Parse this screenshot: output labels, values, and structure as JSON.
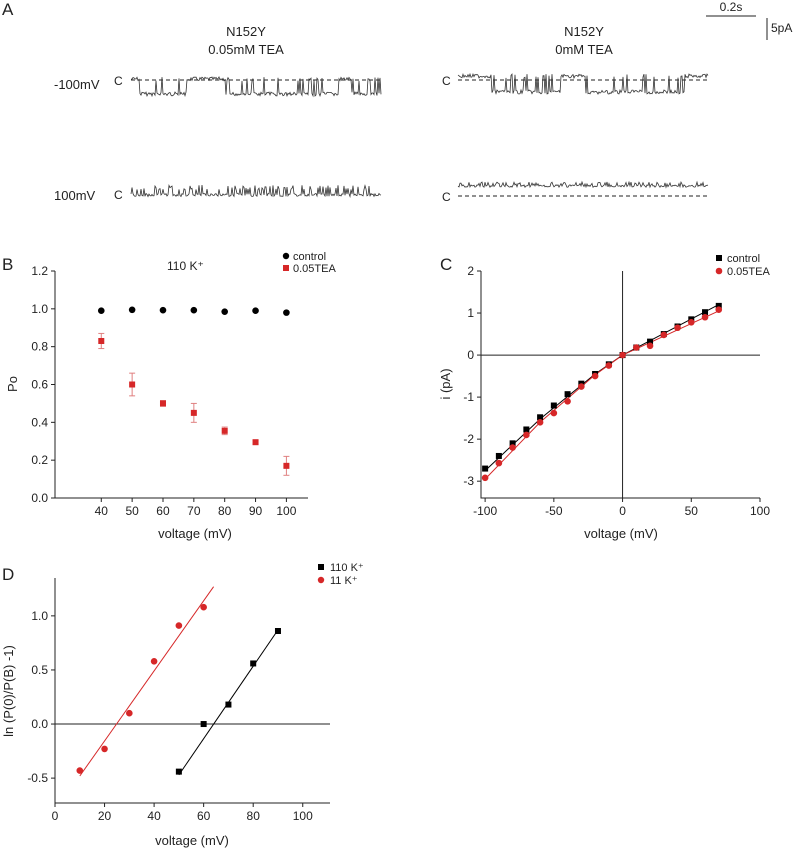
{
  "panel_letters": [
    "A",
    "B",
    "C",
    "D"
  ],
  "panel_a": {
    "scale_bar_time": "0.2s",
    "scale_bar_current": "5pA",
    "closed_label": "C",
    "left_title_line1": "N152Y",
    "left_title_line2": "0.05mM  TEA",
    "right_title_line1": "N152Y",
    "right_title_line2": "0mM  TEA",
    "row_labels": [
      "-100mV",
      "100mV"
    ]
  },
  "chart_data": [
    {
      "id": "B",
      "type": "scatter",
      "annotation": "110 K⁺",
      "xlabel": "voltage (mV)",
      "ylabel": "Po",
      "xlim": [
        25,
        107
      ],
      "ylim": [
        0,
        1.2
      ],
      "xticks": [
        40,
        50,
        60,
        70,
        80,
        90,
        100
      ],
      "yticks": [
        0.0,
        0.2,
        0.4,
        0.6,
        0.8,
        1.0,
        1.2
      ],
      "legend_position": "top-right",
      "series": [
        {
          "name": "control",
          "color": "#000000",
          "marker": "circle",
          "x": [
            40,
            50,
            60,
            70,
            80,
            90,
            100
          ],
          "y": [
            0.99,
            0.995,
            0.993,
            0.993,
            0.985,
            0.99,
            0.98
          ]
        },
        {
          "name": "0.05TEA",
          "color": "#d62728",
          "marker": "square",
          "x": [
            40,
            50,
            60,
            70,
            80,
            90,
            100
          ],
          "y": [
            0.83,
            0.6,
            0.5,
            0.45,
            0.355,
            0.295,
            0.17
          ],
          "err": [
            0.04,
            0.06,
            0.015,
            0.05,
            0.02,
            0.01,
            0.05
          ]
        }
      ]
    },
    {
      "id": "C",
      "type": "scatter",
      "xlabel": "voltage (mV)",
      "ylabel": "i (pA)",
      "xlim": [
        -103,
        100
      ],
      "ylim": [
        -3.4,
        2.0
      ],
      "xticks": [
        -100,
        -50,
        0,
        50,
        100
      ],
      "yticks": [
        -3,
        -2,
        -1,
        0,
        1,
        2
      ],
      "legend_position": "top-right",
      "series": [
        {
          "name": "control",
          "color": "#000000",
          "marker": "square",
          "x": [
            -100,
            -90,
            -80,
            -70,
            -60,
            -50,
            -40,
            -30,
            -20,
            -10,
            0,
            10,
            20,
            30,
            40,
            50,
            60,
            70
          ],
          "y": [
            -2.7,
            -2.4,
            -2.1,
            -1.77,
            -1.48,
            -1.2,
            -0.93,
            -0.68,
            -0.45,
            -0.22,
            0.0,
            0.18,
            0.32,
            0.5,
            0.68,
            0.85,
            1.02,
            1.17
          ],
          "fit": [
            [
              -100,
              -2.75
            ],
            [
              -60,
              -1.52
            ],
            [
              -20,
              -0.45
            ],
            [
              0,
              0.0
            ],
            [
              70,
              1.2
            ]
          ]
        },
        {
          "name": "0.05TEA",
          "color": "#d62728",
          "marker": "circle",
          "x": [
            -100,
            -90,
            -80,
            -70,
            -60,
            -50,
            -40,
            -30,
            -20,
            -10,
            0,
            10,
            20,
            30,
            40,
            50,
            60,
            70
          ],
          "y": [
            -2.92,
            -2.57,
            -2.2,
            -1.9,
            -1.6,
            -1.38,
            -1.1,
            -0.75,
            -0.5,
            -0.25,
            0.0,
            0.18,
            0.22,
            0.48,
            0.65,
            0.78,
            0.9,
            1.08
          ],
          "fit": [
            [
              -100,
              -2.95
            ],
            [
              -60,
              -1.6
            ],
            [
              -20,
              -0.47
            ],
            [
              0,
              0.0
            ],
            [
              70,
              1.05
            ]
          ]
        }
      ]
    },
    {
      "id": "D",
      "type": "scatter",
      "xlabel": "voltage (mV)",
      "ylabel": "ln (P(0)/P(B) -1)",
      "xlim": [
        0,
        111
      ],
      "ylim": [
        -0.73,
        1.35
      ],
      "xticks": [
        0,
        20,
        40,
        60,
        80,
        100
      ],
      "yticks": [
        -0.5,
        0.0,
        0.5,
        1.0
      ],
      "legend_position": "top-right",
      "series": [
        {
          "name": "110 K⁺",
          "color": "#000000",
          "marker": "square",
          "x": [
            50,
            60,
            70,
            80,
            90
          ],
          "y": [
            -0.44,
            0.0,
            0.18,
            0.56,
            0.86
          ],
          "fit": [
            [
              50,
              -0.47
            ],
            [
              90,
              0.87
            ]
          ]
        },
        {
          "name": "11 K⁺",
          "color": "#d62728",
          "marker": "circle",
          "x": [
            10,
            20,
            30,
            40,
            50,
            60
          ],
          "y": [
            -0.43,
            -0.23,
            0.1,
            0.58,
            0.91,
            1.08
          ],
          "fit": [
            [
              10,
              -0.48
            ],
            [
              64,
              1.27
            ]
          ]
        }
      ]
    }
  ]
}
